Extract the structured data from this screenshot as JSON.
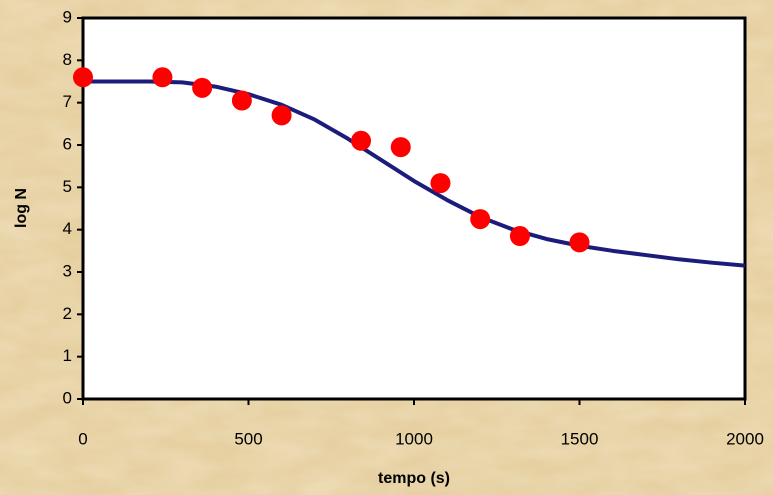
{
  "chart_data": {
    "type": "combo",
    "xlabel": "tempo (s)",
    "ylabel": "log N",
    "xlim": [
      0,
      2000
    ],
    "xticks": [
      0,
      500,
      1000,
      1500,
      2000
    ],
    "ylim": [
      0,
      9
    ],
    "yticks": [
      0,
      1,
      2,
      3,
      4,
      5,
      6,
      7,
      8,
      9
    ],
    "series": [
      {
        "type": "line",
        "color": "#1c1c7a",
        "x": [
          0,
          200,
          300,
          400,
          500,
          600,
          700,
          800,
          900,
          1000,
          1100,
          1200,
          1300,
          1400,
          1500,
          1600,
          1700,
          1800,
          1900,
          2000
        ],
        "values": [
          7.5,
          7.5,
          7.48,
          7.38,
          7.2,
          6.95,
          6.6,
          6.15,
          5.65,
          5.15,
          4.7,
          4.3,
          4.0,
          3.78,
          3.62,
          3.5,
          3.4,
          3.3,
          3.22,
          3.15
        ]
      },
      {
        "type": "scatter",
        "color": "#ff0000",
        "x": [
          0,
          240,
          360,
          480,
          600,
          840,
          960,
          1080,
          1200,
          1320,
          1500
        ],
        "values": [
          7.6,
          7.6,
          7.35,
          7.05,
          6.7,
          6.1,
          5.95,
          5.1,
          4.25,
          3.85,
          3.7
        ]
      }
    ]
  }
}
